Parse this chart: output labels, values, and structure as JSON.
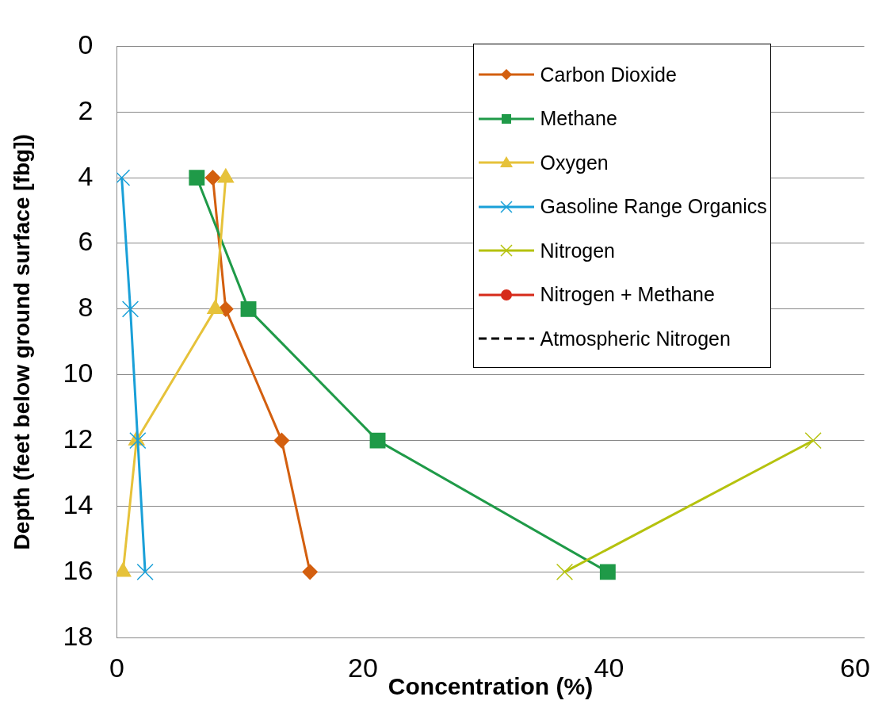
{
  "chart_data": {
    "type": "line",
    "xlabel": "Concentration (%)",
    "ylabel": "Depth (feet below ground surface [fbg])",
    "xlim": [
      0,
      60.75
    ],
    "xticks": [
      0,
      20,
      40,
      60
    ],
    "ylim": [
      18,
      0
    ],
    "yticks": [
      0,
      2,
      4,
      6,
      8,
      10,
      12,
      14,
      16,
      18
    ],
    "grid": "y",
    "legend": "top right",
    "series": [
      {
        "name": "Carbon Dioxide",
        "color": "#d35f0f",
        "marker": "diamond",
        "x": [
          7.8,
          8.85,
          13.4,
          15.7
        ],
        "values": [
          4,
          8,
          12,
          16
        ]
      },
      {
        "name": "Methane",
        "color": "#1f9a48",
        "marker": "square",
        "x": [
          6.5,
          10.7,
          21.2,
          39.9
        ],
        "values": [
          4,
          8,
          12,
          16
        ]
      },
      {
        "name": "Oxygen",
        "color": "#e6c23a",
        "marker": "triangle",
        "x": [
          8.85,
          8.0,
          1.6,
          0.5
        ],
        "values": [
          4,
          8,
          12,
          16
        ]
      },
      {
        "name": "Gasoline Range Organics",
        "color": "#1aa0d8",
        "marker": "cross",
        "x": [
          0.4,
          1.1,
          1.7,
          2.3
        ],
        "values": [
          4,
          8,
          12,
          16
        ]
      },
      {
        "name": "Nitrogen",
        "color": "#b5c20e",
        "marker": "cross",
        "x": [
          56.6,
          36.4
        ],
        "values": [
          12,
          16
        ]
      },
      {
        "name": "Nitrogen + Methane",
        "color": "#d62a1a",
        "marker": "circle"
      },
      {
        "name": "Atmospheric Nitrogen",
        "color": "#000000",
        "marker": "none",
        "line_style": "dashed"
      }
    ]
  }
}
